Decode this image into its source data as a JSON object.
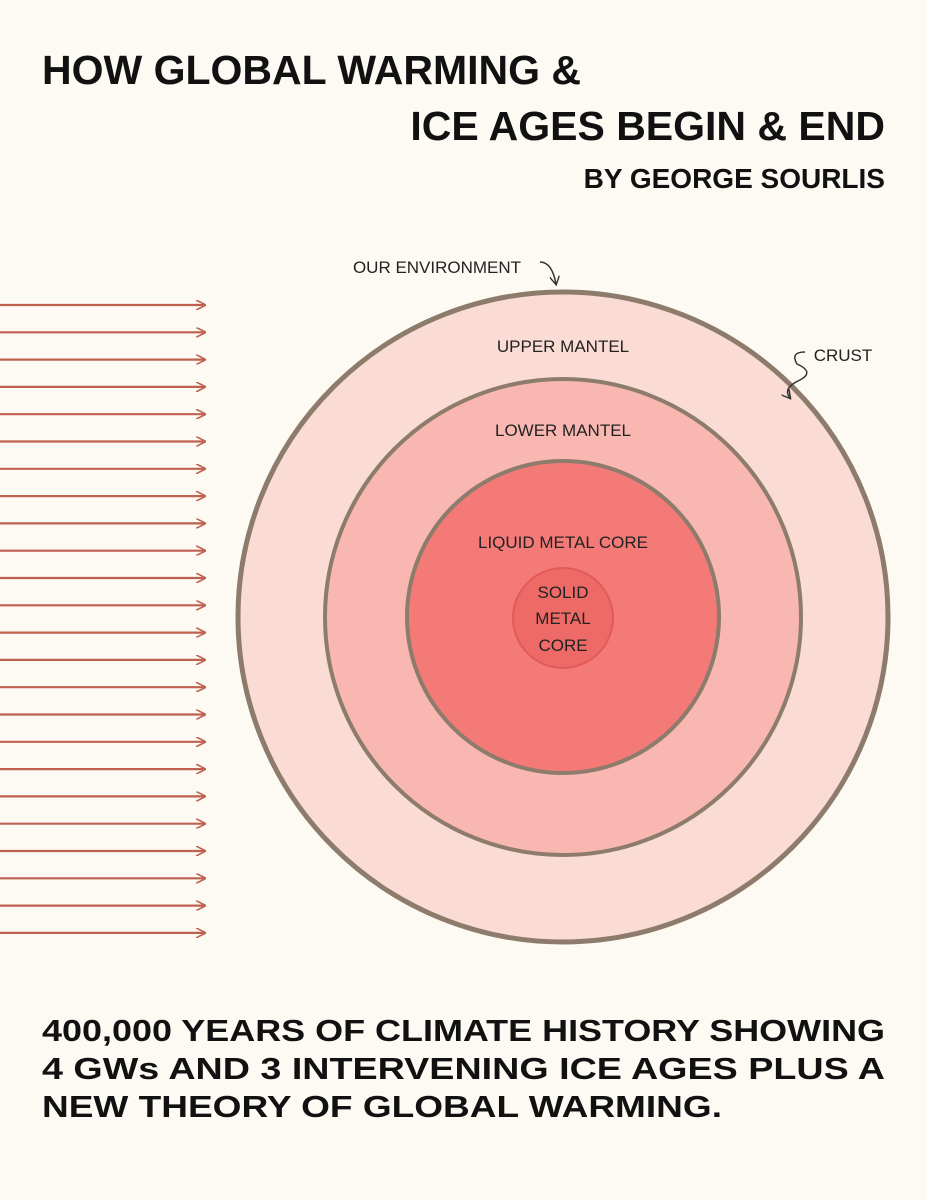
{
  "header": {
    "title_lines": [
      "HOW GLOBAL WARMING &",
      "ICE AGES BEGIN & END"
    ],
    "author": "BY GEORGE SOURLIS"
  },
  "diagram": {
    "labels": {
      "environment": "OUR ENVIRONMENT",
      "upper_mantel": "UPPER MANTEL",
      "crust": "CRUST",
      "lower_mantel": "LOWER MANTEL",
      "liquid_core": "LIQUID METAL CORE",
      "solid_core": [
        "SOLID",
        "METAL",
        "CORE"
      ]
    }
  },
  "footer": {
    "lines": [
      "400,000 YEARS OF CLIMATE HISTORY SHOWING",
      "4 GWs AND 3 INTERVENING ICE AGES PLUS A",
      "NEW THEORY OF GLOBAL WARMING."
    ]
  }
}
